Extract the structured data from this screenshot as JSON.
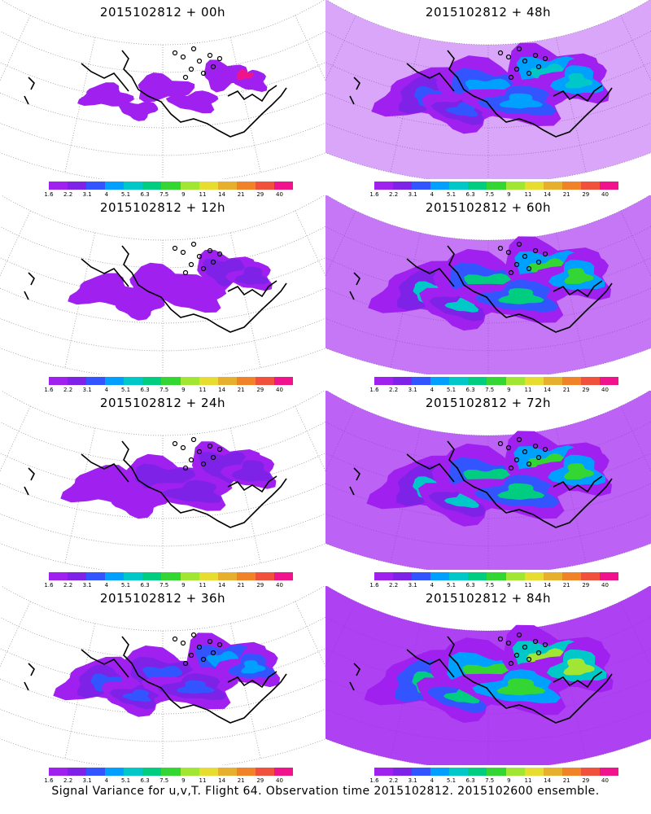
{
  "panels": [
    {
      "title": "2015102812 + 00h",
      "spread": 0.2
    },
    {
      "title": "2015102812 + 48h",
      "spread": 0.85
    },
    {
      "title": "2015102812 + 12h",
      "spread": 0.4
    },
    {
      "title": "2015102812 + 60h",
      "spread": 0.92
    },
    {
      "title": "2015102812 + 24h",
      "spread": 0.55
    },
    {
      "title": "2015102812 + 72h",
      "spread": 0.95
    },
    {
      "title": "2015102812 + 36h",
      "spread": 0.7
    },
    {
      "title": "2015102812 + 84h",
      "spread": 1.0
    }
  ],
  "colorbar": {
    "labels": [
      "1.6",
      "2.2",
      "3.1",
      "4",
      "5.1",
      "6.3",
      "7.5",
      "9",
      "11",
      "14",
      "21",
      "29",
      "40"
    ],
    "colors": [
      "#a020f0",
      "#7f22e8",
      "#3355ff",
      "#00a0ff",
      "#00c8c8",
      "#00cd80",
      "#33d633",
      "#a0e632",
      "#e6dc32",
      "#e6af2d",
      "#f08228",
      "#f0503c",
      "#f0148c"
    ]
  },
  "footer": "Signal Variance for u,v,T. Flight 64. Observation time 2015102812. 2015102600 ensemble."
}
